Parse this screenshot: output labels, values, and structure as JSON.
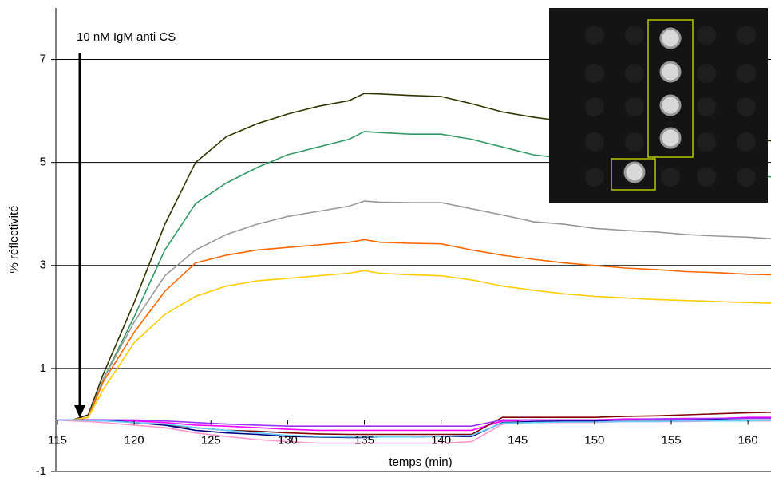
{
  "chart_data": {
    "type": "line",
    "annotation": "10 nM IgM anti CS",
    "x_label": "temps (min)",
    "y_label": "% réflectivité",
    "x": [
      115,
      116,
      117,
      118,
      120,
      122,
      124,
      126,
      128,
      130,
      132,
      134,
      135,
      136,
      138,
      140,
      142,
      144,
      146,
      148,
      150,
      152,
      154,
      156,
      158,
      160,
      161.5
    ],
    "series": [
      {
        "color": "#333300",
        "values": [
          0,
          0,
          0.1,
          0.9,
          2.28,
          3.8,
          5.0,
          5.5,
          5.75,
          5.94,
          6.09,
          6.2,
          6.34,
          6.33,
          6.3,
          6.28,
          6.14,
          5.98,
          5.88,
          5.8,
          5.72,
          5.65,
          5.6,
          5.55,
          5.5,
          5.45,
          5.42
        ]
      },
      {
        "color": "#339966",
        "values": [
          0,
          0,
          0.05,
          0.8,
          2.0,
          3.3,
          4.2,
          4.6,
          4.9,
          5.15,
          5.3,
          5.45,
          5.6,
          5.58,
          5.55,
          5.55,
          5.45,
          5.3,
          5.15,
          5.08,
          5.0,
          4.95,
          4.9,
          4.85,
          4.8,
          4.75,
          4.72
        ]
      },
      {
        "color": "#999999",
        "values": [
          0,
          0,
          0.05,
          0.8,
          1.9,
          2.8,
          3.3,
          3.6,
          3.8,
          3.95,
          4.05,
          4.15,
          4.25,
          4.23,
          4.22,
          4.22,
          4.1,
          3.98,
          3.85,
          3.8,
          3.72,
          3.68,
          3.65,
          3.6,
          3.57,
          3.55,
          3.52
        ]
      },
      {
        "color": "#ff6600",
        "values": [
          0,
          0,
          0.05,
          0.75,
          1.7,
          2.5,
          3.05,
          3.2,
          3.3,
          3.35,
          3.4,
          3.45,
          3.5,
          3.45,
          3.43,
          3.42,
          3.3,
          3.2,
          3.12,
          3.05,
          3.0,
          2.95,
          2.92,
          2.88,
          2.86,
          2.83,
          2.82
        ]
      },
      {
        "color": "#ffcc00",
        "values": [
          0,
          0,
          0.05,
          0.6,
          1.5,
          2.05,
          2.4,
          2.6,
          2.7,
          2.75,
          2.8,
          2.85,
          2.9,
          2.85,
          2.82,
          2.8,
          2.72,
          2.6,
          2.52,
          2.45,
          2.4,
          2.37,
          2.34,
          2.32,
          2.3,
          2.28,
          2.27
        ]
      },
      {
        "color": "#ff00ff",
        "values": [
          0,
          0,
          0,
          0,
          -0.02,
          -0.05,
          -0.1,
          -0.12,
          -0.15,
          -0.18,
          -0.2,
          -0.2,
          -0.2,
          -0.2,
          -0.2,
          -0.2,
          -0.2,
          -0.02,
          0,
          0,
          0,
          0.02,
          0.02,
          0.03,
          0.03,
          0.05,
          0.05
        ]
      },
      {
        "color": "#800000",
        "values": [
          0,
          0,
          0,
          0,
          -0.05,
          -0.1,
          -0.15,
          -0.2,
          -0.22,
          -0.25,
          -0.27,
          -0.28,
          -0.28,
          -0.28,
          -0.28,
          -0.28,
          -0.28,
          0.05,
          0.05,
          0.05,
          0.05,
          0.07,
          0.08,
          0.1,
          0.12,
          0.14,
          0.15
        ]
      },
      {
        "color": "#000080",
        "values": [
          0,
          0,
          0,
          0,
          -0.05,
          -0.1,
          -0.2,
          -0.25,
          -0.28,
          -0.32,
          -0.33,
          -0.34,
          -0.34,
          -0.33,
          -0.33,
          -0.32,
          -0.32,
          -0.05,
          -0.03,
          -0.02,
          -0.02,
          0,
          0,
          0,
          0.02,
          0.03,
          0.03
        ]
      },
      {
        "color": "#ff99cc",
        "values": [
          0,
          -0.02,
          -0.03,
          -0.05,
          -0.1,
          -0.15,
          -0.25,
          -0.32,
          -0.38,
          -0.42,
          -0.45,
          -0.45,
          -0.45,
          -0.45,
          -0.45,
          -0.45,
          -0.42,
          -0.08,
          -0.05,
          -0.05,
          -0.05,
          -0.03,
          -0.03,
          -0.03,
          -0.02,
          -0.02,
          -0.02
        ]
      },
      {
        "color": "#9933ff",
        "values": [
          0,
          0,
          0,
          0,
          0,
          -0.02,
          -0.05,
          -0.08,
          -0.1,
          -0.12,
          -0.12,
          -0.12,
          -0.12,
          -0.12,
          -0.12,
          -0.12,
          -0.12,
          0,
          0,
          0,
          0,
          0,
          0.02,
          0.02,
          0.03,
          0.03,
          0.03
        ]
      },
      {
        "color": "#66ccff",
        "values": [
          0,
          0,
          -0.01,
          -0.02,
          -0.05,
          -0.08,
          -0.15,
          -0.2,
          -0.25,
          -0.3,
          -0.32,
          -0.33,
          -0.33,
          -0.33,
          -0.33,
          -0.32,
          -0.3,
          -0.06,
          -0.05,
          -0.04,
          -0.04,
          -0.03,
          -0.03,
          -0.02,
          -0.02,
          -0.02,
          -0.01
        ]
      }
    ],
    "xlim": [
      115,
      161.5
    ],
    "xticks": [
      115,
      120,
      125,
      130,
      135,
      140,
      145,
      150,
      155,
      160
    ],
    "ylim": [
      -1,
      8
    ],
    "yticks": [
      -1,
      1,
      3,
      5,
      7
    ],
    "grid": true
  }
}
